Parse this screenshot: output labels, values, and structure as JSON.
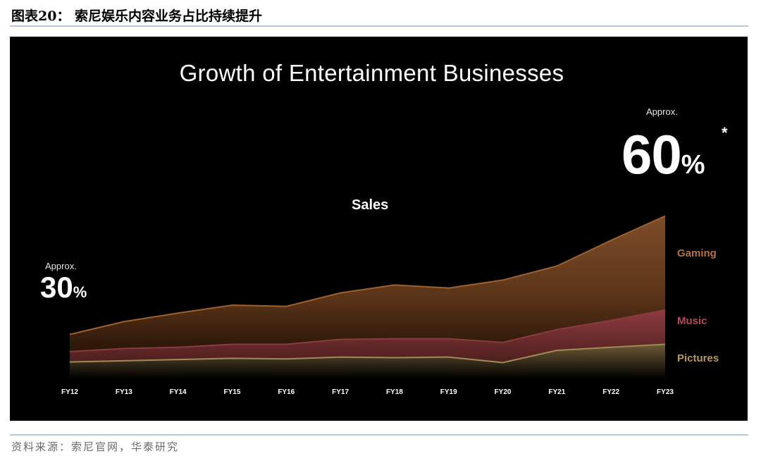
{
  "figure": {
    "title": "图表20：  索尼娱乐内容业务占比持续提升",
    "source": "资料来源：索尼官网，华泰研究"
  },
  "chart_data": {
    "type": "area",
    "title": "Growth of Entertainment Businesses",
    "subtitle": "Sales",
    "categories": [
      "FY12",
      "FY13",
      "FY14",
      "FY15",
      "FY16",
      "FY17",
      "FY18",
      "FY19",
      "FY20",
      "FY21",
      "FY22",
      "FY23"
    ],
    "stacked": true,
    "series": [
      {
        "name": "Pictures",
        "values": [
          27,
          29,
          31,
          33,
          32,
          35,
          34,
          35,
          26,
          46,
          51,
          56
        ],
        "color": "#a08a55"
      },
      {
        "name": "Music",
        "values": [
          17,
          20,
          20,
          23,
          24,
          29,
          31,
          30,
          33,
          34,
          44,
          56
        ],
        "color": "#8a3b3e"
      },
      {
        "name": "Gaming",
        "values": [
          28,
          44,
          56,
          64,
          62,
          76,
          88,
          83,
          102,
          104,
          131,
          154
        ],
        "color": "#7a4a28"
      }
    ],
    "annotations": {
      "left_approx": "Approx.",
      "left_value": "30",
      "left_unit": "%",
      "right_approx": "Approx.",
      "right_value": "60",
      "right_unit": "%",
      "right_note": "*"
    },
    "legend": "right",
    "grid": false,
    "background": "#000000"
  }
}
